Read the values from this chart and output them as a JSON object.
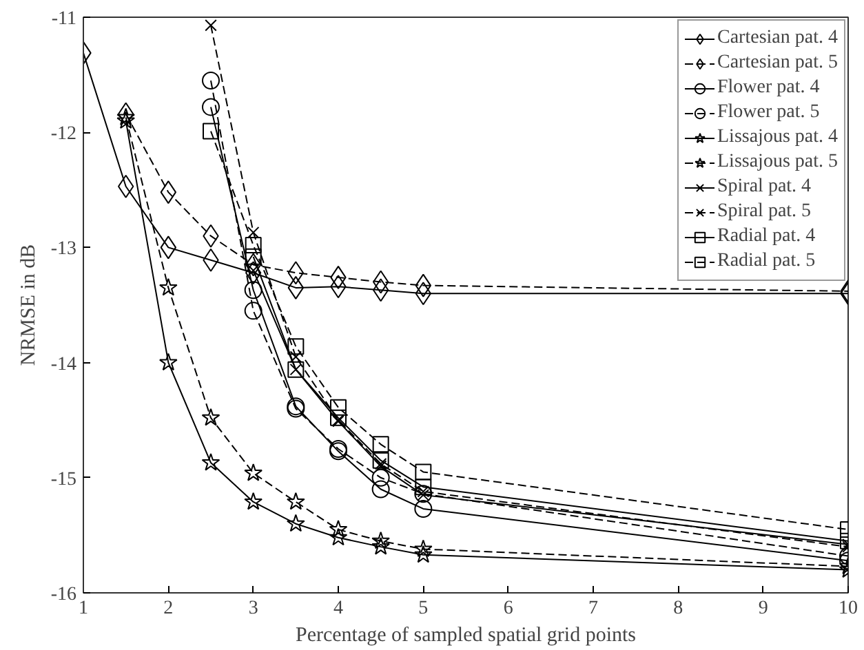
{
  "chart_data": {
    "type": "line",
    "xlabel": "Percentage of sampled spatial grid points",
    "ylabel": "NRMSE in dB",
    "xlim": [
      1,
      10
    ],
    "ylim": [
      -16,
      -11
    ],
    "xticks": [
      1,
      2,
      3,
      4,
      5,
      6,
      7,
      8,
      9,
      10
    ],
    "yticks": [
      -16,
      -15,
      -14,
      -13,
      -12,
      -11
    ],
    "grid": false,
    "legend": "top right",
    "series": [
      {
        "name": "Cartesian pat. 4",
        "color": "#000000",
        "marker": "diamond",
        "line_style": "solid",
        "x": [
          1,
          1.5,
          2,
          2.5,
          3,
          3.5,
          4,
          4.5,
          5,
          10
        ],
        "values": [
          -11.31,
          -12.47,
          -13.0,
          -13.11,
          -13.22,
          -13.35,
          -13.34,
          -13.37,
          -13.4,
          -13.4
        ]
      },
      {
        "name": "Cartesian pat. 5",
        "color": "#000000",
        "marker": "diamond",
        "line_style": "dashed",
        "x": [
          1.5,
          2,
          2.5,
          3,
          3.5,
          4,
          4.5,
          5,
          10
        ],
        "values": [
          -11.84,
          -12.52,
          -12.9,
          -13.15,
          -13.22,
          -13.26,
          -13.3,
          -13.33,
          -13.38
        ]
      },
      {
        "name": "Flower pat. 4",
        "color": "#000000",
        "marker": "circle",
        "line_style": "solid",
        "x": [
          2.5,
          3,
          3.5,
          4,
          4.5,
          5,
          10
        ],
        "values": [
          -11.78,
          -13.37,
          -14.38,
          -14.77,
          -15.1,
          -15.27,
          -15.72
        ]
      },
      {
        "name": "Flower pat. 5",
        "color": "#000000",
        "marker": "circle",
        "line_style": "dashed",
        "x": [
          2.5,
          3,
          3.5,
          4,
          4.5,
          5,
          10
        ],
        "values": [
          -11.55,
          -13.55,
          -14.4,
          -14.75,
          -15.0,
          -15.14,
          -15.68
        ]
      },
      {
        "name": "Lissajous pat. 4",
        "color": "#000000",
        "marker": "star",
        "line_style": "solid",
        "x": [
          1.5,
          2,
          2.5,
          3,
          3.5,
          4,
          4.5,
          5,
          10
        ],
        "values": [
          -11.9,
          -14.0,
          -14.87,
          -15.21,
          -15.4,
          -15.52,
          -15.6,
          -15.67,
          -15.8
        ]
      },
      {
        "name": "Lissajous pat. 5",
        "color": "#000000",
        "marker": "star",
        "line_style": "dashed",
        "x": [
          1.5,
          2,
          2.5,
          3,
          3.5,
          4,
          4.5,
          5,
          10
        ],
        "values": [
          -11.87,
          -13.35,
          -14.48,
          -14.96,
          -15.21,
          -15.45,
          -15.55,
          -15.62,
          -15.77
        ]
      },
      {
        "name": "Spiral pat. 4",
        "color": "#000000",
        "marker": "cross",
        "line_style": "solid",
        "x": [
          3,
          3.5,
          4,
          4.5,
          5,
          10
        ],
        "values": [
          -13.2,
          -14.06,
          -14.51,
          -14.9,
          -15.15,
          -15.58
        ]
      },
      {
        "name": "Spiral pat. 5",
        "color": "#000000",
        "marker": "cross",
        "line_style": "dashed",
        "x": [
          2.5,
          3,
          3.5,
          4,
          4.5,
          5,
          10
        ],
        "values": [
          -11.07,
          -12.87,
          -13.95,
          -14.5,
          -14.88,
          -15.12,
          -15.6
        ]
      },
      {
        "name": "Radial pat. 4",
        "color": "#000000",
        "marker": "square",
        "line_style": "solid",
        "x": [
          3,
          3.5,
          4,
          4.5,
          5,
          10
        ],
        "values": [
          -13.08,
          -14.06,
          -14.48,
          -14.85,
          -15.08,
          -15.55
        ]
      },
      {
        "name": "Radial pat. 5",
        "color": "#000000",
        "marker": "square",
        "line_style": "dashed",
        "x": [
          2.5,
          3,
          3.5,
          4,
          4.5,
          5,
          10
        ],
        "values": [
          -11.99,
          -12.98,
          -13.86,
          -14.39,
          -14.71,
          -14.95,
          -15.45
        ]
      }
    ]
  }
}
